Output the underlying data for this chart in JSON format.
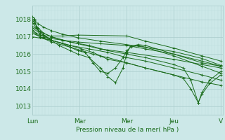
{
  "background_color": "#cce8e8",
  "plot_bg_color": "#cce8e8",
  "grid_color_major": "#aacccc",
  "grid_color_minor": "#bbdddd",
  "line_color": "#1a6b1a",
  "marker_color": "#1a6b1a",
  "ylabel_ticks": [
    1013,
    1014,
    1015,
    1016,
    1017,
    1018
  ],
  "ylim": [
    1012.5,
    1018.8
  ],
  "xlim": [
    0,
    5.05
  ],
  "xtick_labels": [
    "Lun",
    "Mar",
    "Mer",
    "Jeu",
    "V"
  ],
  "xtick_positions": [
    0,
    1.25,
    2.5,
    3.75,
    5.0
  ],
  "xlabel": "Pression niveau de la mer( hPa )",
  "series": [
    [
      0.0,
      1017.9,
      0.05,
      1017.8,
      0.15,
      1017.5,
      0.3,
      1017.2,
      0.5,
      1017.0,
      0.8,
      1016.8,
      1.2,
      1016.6,
      1.8,
      1016.3,
      2.5,
      1016.1,
      3.75,
      1015.7,
      4.5,
      1015.4,
      5.0,
      1015.2
    ],
    [
      0.0,
      1018.0,
      0.05,
      1017.95,
      0.15,
      1017.75,
      0.3,
      1017.55,
      0.5,
      1017.35,
      0.8,
      1017.15,
      1.2,
      1016.95,
      1.8,
      1016.75,
      2.5,
      1016.55,
      3.75,
      1016.15,
      4.5,
      1015.75,
      5.0,
      1015.35
    ],
    [
      0.0,
      1017.8,
      0.1,
      1017.5,
      0.3,
      1017.1,
      0.5,
      1016.8,
      0.7,
      1016.5,
      1.0,
      1016.2,
      1.2,
      1016.0,
      1.5,
      1015.8,
      1.8,
      1015.2,
      2.0,
      1014.7,
      2.2,
      1014.35,
      2.4,
      1015.2,
      2.5,
      1016.05,
      2.6,
      1016.45,
      2.8,
      1016.55,
      3.0,
      1016.5,
      3.75,
      1016.0,
      4.5,
      1015.5,
      5.0,
      1015.3
    ],
    [
      0.0,
      1017.2,
      0.2,
      1017.0,
      0.5,
      1016.8,
      0.8,
      1016.6,
      1.0,
      1016.4,
      1.2,
      1016.2,
      1.4,
      1016.1,
      1.6,
      1015.5,
      1.8,
      1015.0,
      2.0,
      1014.9,
      2.2,
      1015.2,
      2.4,
      1015.8,
      2.5,
      1016.2,
      2.6,
      1016.4,
      2.8,
      1016.5,
      3.0,
      1016.4,
      3.75,
      1015.9,
      4.5,
      1015.3,
      5.0,
      1014.9
    ],
    [
      0.0,
      1017.5,
      0.2,
      1017.2,
      0.5,
      1016.8,
      1.0,
      1016.5,
      1.3,
      1016.3,
      1.6,
      1016.1,
      1.8,
      1015.9,
      2.0,
      1015.7,
      2.5,
      1015.5,
      3.0,
      1015.2,
      3.75,
      1014.8,
      4.5,
      1014.4,
      5.0,
      1014.2
    ],
    [
      0.0,
      1017.3,
      0.2,
      1017.0,
      0.5,
      1016.7,
      1.0,
      1016.4,
      1.3,
      1016.2,
      1.6,
      1016.0,
      2.0,
      1015.8,
      2.5,
      1015.5,
      3.0,
      1015.2,
      3.75,
      1014.8,
      4.0,
      1014.6,
      4.2,
      1014.0,
      4.4,
      1013.2,
      4.5,
      1013.7,
      4.7,
      1014.3,
      5.0,
      1014.8
    ],
    [
      0.0,
      1017.6,
      0.2,
      1017.3,
      0.5,
      1017.0,
      1.0,
      1016.7,
      1.5,
      1016.5,
      2.0,
      1016.2,
      2.5,
      1016.0,
      3.0,
      1015.8,
      3.75,
      1015.4,
      4.0,
      1015.2,
      4.2,
      1014.5,
      4.4,
      1013.2,
      4.5,
      1013.8,
      4.7,
      1014.5,
      5.0,
      1015.0
    ],
    [
      0.0,
      1017.0,
      0.5,
      1016.8,
      1.0,
      1016.5,
      1.5,
      1016.3,
      2.0,
      1016.1,
      2.5,
      1015.8,
      3.0,
      1015.6,
      3.75,
      1015.2,
      4.5,
      1014.8,
      5.0,
      1014.5
    ],
    [
      0.0,
      1018.15,
      0.05,
      1018.05,
      0.1,
      1017.55,
      0.2,
      1017.1,
      0.3,
      1017.05,
      0.5,
      1017.05,
      0.8,
      1017.05,
      1.2,
      1017.1,
      2.5,
      1017.05,
      3.0,
      1016.75,
      3.75,
      1016.35,
      4.5,
      1015.9,
      5.0,
      1015.6
    ],
    [
      0.0,
      1017.4,
      0.1,
      1017.2,
      0.3,
      1017.0,
      0.5,
      1016.9,
      0.8,
      1016.8,
      1.2,
      1016.7,
      1.8,
      1016.6,
      2.5,
      1016.5,
      3.0,
      1016.3,
      3.75,
      1016.0,
      4.5,
      1015.6,
      5.0,
      1015.3
    ]
  ]
}
